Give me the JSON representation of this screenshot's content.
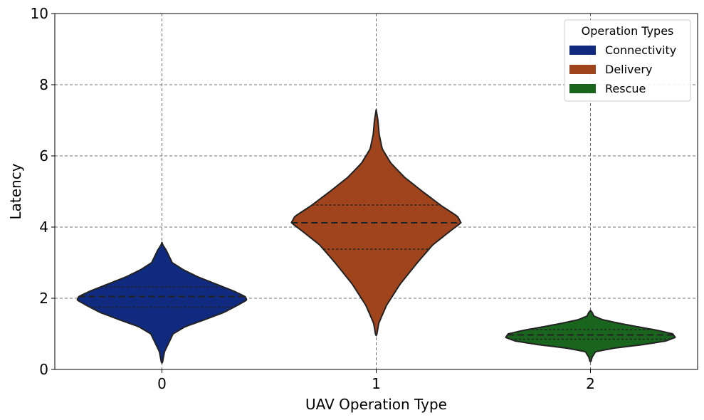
{
  "chart_data": {
    "type": "violin",
    "xlabel": "UAV Operation Type",
    "ylabel": "Latency",
    "ylim": [
      0,
      10
    ],
    "yticks": [
      0,
      2,
      4,
      6,
      8,
      10
    ],
    "categories": [
      "0",
      "1",
      "2"
    ],
    "grid": true,
    "legend": {
      "title": "Operation Types",
      "placement": "top-right",
      "entries": [
        {
          "label": "Connectivity",
          "color": "#0f2a7f"
        },
        {
          "label": "Delivery",
          "color": "#a0441d"
        },
        {
          "label": "Rescue",
          "color": "#19651e"
        }
      ]
    },
    "series": [
      {
        "category": "0",
        "name": "Connectivity",
        "color": "#0f2a7f",
        "quartiles": [
          1.75,
          2.05,
          2.32
        ],
        "density": [
          [
            0.18,
            0.005
          ],
          [
            0.5,
            0.03
          ],
          [
            0.8,
            0.09
          ],
          [
            1.0,
            0.13
          ],
          [
            1.2,
            0.27
          ],
          [
            1.4,
            0.5
          ],
          [
            1.6,
            0.72
          ],
          [
            1.8,
            0.88
          ],
          [
            1.95,
            0.99
          ],
          [
            2.05,
            0.97
          ],
          [
            2.2,
            0.84
          ],
          [
            2.4,
            0.63
          ],
          [
            2.6,
            0.42
          ],
          [
            2.8,
            0.25
          ],
          [
            3.0,
            0.12
          ],
          [
            3.2,
            0.08
          ],
          [
            3.35,
            0.05
          ],
          [
            3.5,
            0.01
          ],
          [
            3.57,
            0.0
          ]
        ]
      },
      {
        "category": "1",
        "name": "Delivery",
        "color": "#a0441d",
        "quartiles": [
          3.38,
          4.12,
          4.62
        ],
        "density": [
          [
            0.95,
            0.005
          ],
          [
            1.3,
            0.03
          ],
          [
            1.8,
            0.12
          ],
          [
            2.4,
            0.28
          ],
          [
            3.0,
            0.48
          ],
          [
            3.5,
            0.66
          ],
          [
            3.9,
            0.87
          ],
          [
            4.12,
            0.99
          ],
          [
            4.3,
            0.95
          ],
          [
            4.6,
            0.76
          ],
          [
            5.0,
            0.54
          ],
          [
            5.4,
            0.33
          ],
          [
            5.8,
            0.17
          ],
          [
            6.2,
            0.07
          ],
          [
            6.6,
            0.035
          ],
          [
            7.0,
            0.02
          ],
          [
            7.3,
            0.0
          ]
        ]
      },
      {
        "category": "2",
        "name": "Rescue",
        "color": "#19651e",
        "quartiles": [
          0.85,
          0.97,
          1.12
        ],
        "density": [
          [
            0.22,
            0.005
          ],
          [
            0.35,
            0.02
          ],
          [
            0.5,
            0.06
          ],
          [
            0.6,
            0.28
          ],
          [
            0.7,
            0.62
          ],
          [
            0.8,
            0.88
          ],
          [
            0.9,
            0.99
          ],
          [
            1.0,
            0.96
          ],
          [
            1.1,
            0.78
          ],
          [
            1.2,
            0.55
          ],
          [
            1.3,
            0.33
          ],
          [
            1.4,
            0.14
          ],
          [
            1.5,
            0.04
          ],
          [
            1.6,
            0.02
          ],
          [
            1.66,
            0.0
          ]
        ]
      }
    ]
  }
}
